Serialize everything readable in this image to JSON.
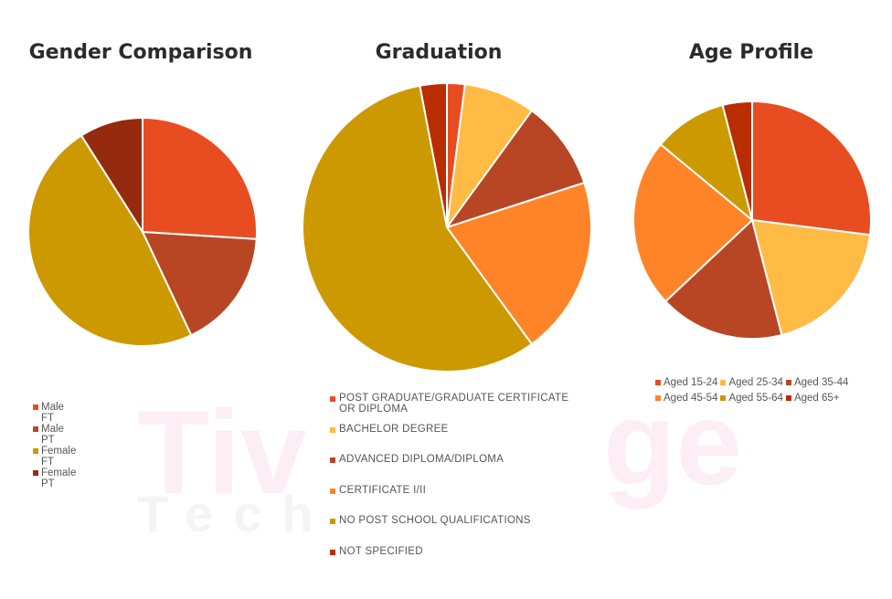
{
  "charts": [
    {
      "type": "pie",
      "title": "Gender Comparison",
      "categories": [
        "Male FT",
        "Male PT",
        "Female FT",
        "Female PT"
      ],
      "values": [
        26,
        17,
        48,
        9
      ],
      "colors": [
        "#E84D22",
        "#B84624",
        "#CC9900",
        "#952A0E"
      ]
    },
    {
      "type": "pie",
      "title": "Graduation",
      "categories": [
        "POST GRADUATE/GRADUATE CERTIFICATE OR DIPLOMA",
        "BACHELOR DEGREE",
        "ADVANCED DIPLOMA/DIPLOMA",
        "CERTIFICATE I/II",
        "NO POST SCHOOL QUALIFICATIONS",
        "NOT SPECIFIED"
      ],
      "values": [
        2,
        8,
        10,
        20,
        57,
        3
      ],
      "colors": [
        "#E84D22",
        "#FFBB44",
        "#B84624",
        "#FF8428",
        "#CC9900",
        "#B92D00"
      ]
    },
    {
      "type": "pie",
      "title": "Age Profile",
      "categories": [
        "Aged 15-24",
        "Aged 25-34",
        "Aged 35-44",
        "Aged 45-54",
        "Aged 55-64",
        "Aged 65+"
      ],
      "values": [
        27,
        19,
        17,
        23,
        10,
        4
      ],
      "colors": [
        "#E84D22",
        "#FFBB44",
        "#B84624",
        "#FF8428",
        "#CC9900",
        "#B92D00"
      ]
    }
  ]
}
